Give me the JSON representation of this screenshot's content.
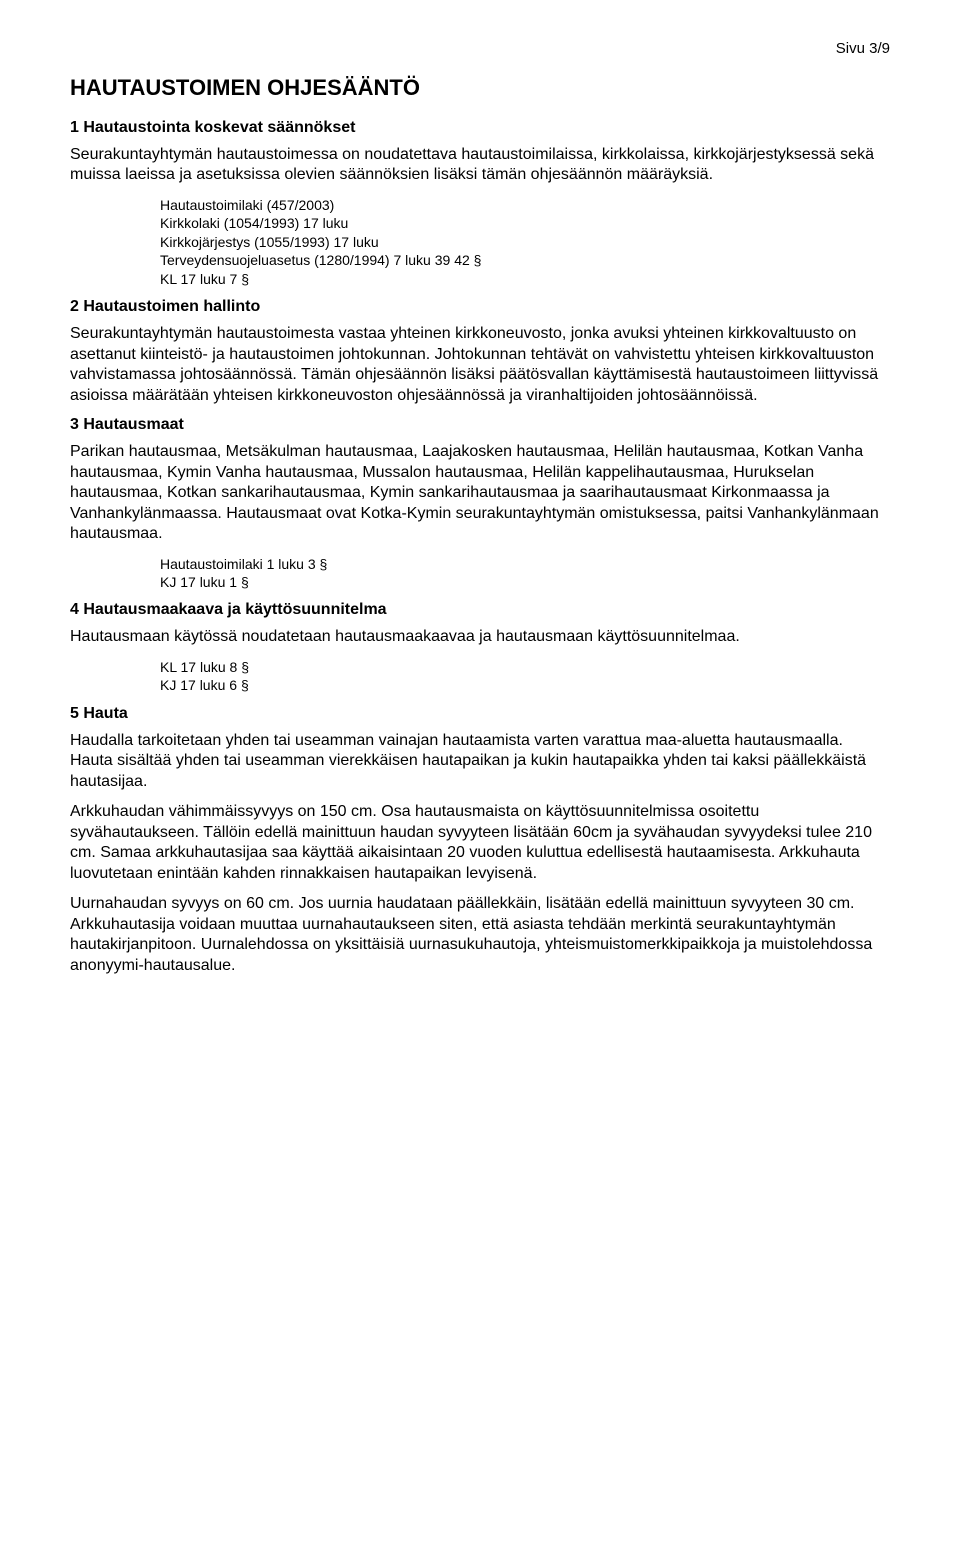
{
  "page_number": "Sivu 3/9",
  "main_title": "HAUTAUSTOIMEN OHJESÄÄNTÖ",
  "sections": {
    "s1": {
      "heading": "1 Hautaustointa koskevat säännökset",
      "p1": "Seurakuntayhtymän hautaustoimessa on noudatettava hautaustoimilaissa, kirkkolaissa, kirkkojärjestyksessä sekä muissa laeissa ja asetuksissa olevien säännöksien lisäksi tämän ohjesäännön määräyksiä.",
      "refs": {
        "r1": "Hautaustoimilaki (457/2003)",
        "r2": "Kirkkolaki (1054/1993) 17 luku",
        "r3": "Kirkkojärjestys (1055/1993) 17 luku",
        "r4": "Terveydensuojeluasetus (1280/1994) 7 luku 39 42 §",
        "r5": "KL 17 luku 7 §"
      }
    },
    "s2": {
      "heading": "2 Hautaustoimen hallinto",
      "p1": "Seurakuntayhtymän hautaustoimesta vastaa yhteinen kirkkoneuvosto, jonka avuksi yhteinen kirkkovaltuusto on asettanut kiinteistö- ja hautaustoimen johtokunnan. Johtokunnan tehtävät on vahvistettu yhteisen kirkkovaltuuston vahvistamassa johtosäännössä. Tämän ohjesäännön lisäksi päätösvallan käyttämisestä hautaustoimeen liittyvissä asioissa määrätään yhteisen kirkkoneuvoston ohjesäännössä ja viranhaltijoiden johtosäännöissä."
    },
    "s3": {
      "heading": "3 Hautausmaat",
      "p1": "Parikan hautausmaa, Metsäkulman hautausmaa, Laajakosken hautausmaa, Helilän hautausmaa, Kotkan Vanha hautausmaa, Kymin Vanha hautausmaa, Mussalon hautausmaa, Helilän kappelihautausmaa, Hurukselan hautausmaa, Kotkan sankarihautausmaa, Kymin sankarihautausmaa ja saarihautausmaat Kirkonmaassa ja Vanhankylänmaassa. Hautausmaat ovat Kotka-Kymin seurakuntayhtymän omistuksessa, paitsi Vanhankylänmaan hautausmaa.",
      "refs": {
        "r1": "Hautaustoimilaki 1 luku 3 §",
        "r2": "KJ 17 luku 1 §"
      }
    },
    "s4": {
      "heading": "4 Hautausmaakaava ja käyttösuunnitelma",
      "p1": "Hautausmaan käytössä noudatetaan hautausmaakaavaa ja hautausmaan käyttösuunnitelmaa.",
      "refs": {
        "r1": "KL 17 luku 8 §",
        "r2": "KJ 17 luku 6 §"
      }
    },
    "s5": {
      "heading": "5 Hauta",
      "p1": "Haudalla tarkoitetaan yhden tai useamman vainajan hautaamista varten varattua maa-aluetta hautausmaalla. Hauta sisältää yhden tai useamman vierekkäisen hautapaikan ja kukin hautapaikka yhden tai kaksi päällekkäistä hautasijaa.",
      "p2": "Arkkuhaudan vähimmäissyvyys on 150 cm. Osa hautausmaista on käyttösuunnitelmissa osoitettu syvähautaukseen. Tällöin edellä mainittuun haudan syvyyteen lisätään 60cm ja syvähaudan syvyydeksi tulee 210 cm. Samaa arkkuhautasijaa saa käyttää aikaisintaan 20 vuoden kuluttua edellisestä hautaamisesta. Arkkuhauta luovutetaan enintään kahden rinnakkaisen hautapaikan levyisenä.",
      "p3": "Uurnahaudan syvyys on 60 cm. Jos uurnia haudataan päällekkäin, lisätään edellä mainittuun syvyyteen 30 cm. Arkkuhautasija voidaan muuttaa uurnahautaukseen siten, että asiasta tehdään merkintä seurakuntayhtymän hautakirjanpitoon. Uurnalehdossa on yksittäisiä uurnasukuhautoja, yhteismuistomerkkipaikkoja ja muistolehdossa anonyymi-hautausalue."
    }
  }
}
